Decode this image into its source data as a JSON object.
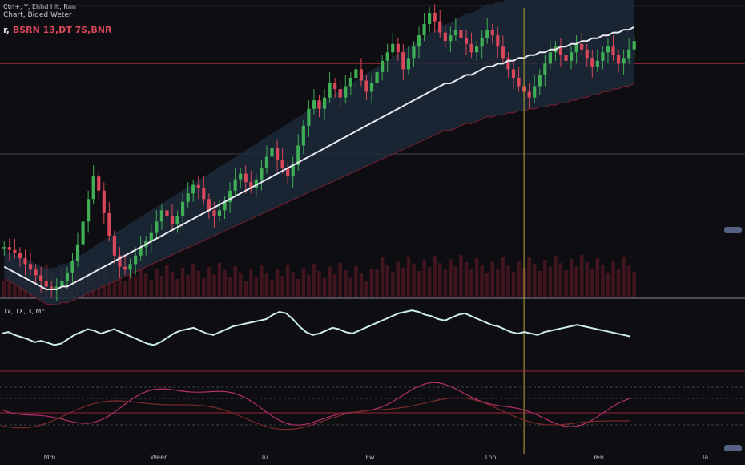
{
  "header": {
    "title": "Ctrl+, Y, Ehhd Hlt, Rnn",
    "symbol": "Chart, Biged Weter",
    "prefix": "r,",
    "ohlc": "BSRN 13,DT 7S,BNR"
  },
  "indicator_labels": {
    "oscillator": "Tx, 1X, 3, Mc"
  },
  "colors": {
    "background": "#0d0d12",
    "bull": "#3fae55",
    "bear": "#d9475a",
    "moving_average": "#e9e9ee",
    "band_fill": "#1c2a3a",
    "band_edge": "#7a1e2c",
    "volume": "#6b1d26",
    "oscillator_main": "#cdeee6",
    "oscillator_signal": "#b3306a",
    "oscillator_fast": "#7a2a2a",
    "reference_line_red": "#a8283a",
    "crosshair": "#b8a53a",
    "grid": "#4a4a56"
  },
  "chart_data": {
    "type": "candlestick",
    "title": "",
    "x_axis_labels": [
      "Mm",
      "Weer",
      "Tu",
      "Fw",
      "Tnn",
      "Yen",
      "Ta"
    ],
    "y_range": [
      0,
      100
    ],
    "grid": true,
    "price": {
      "start": 17,
      "closes": [
        17,
        16,
        15,
        13,
        11,
        9,
        7,
        5,
        3,
        2,
        3,
        5,
        8,
        12,
        18,
        26,
        34,
        42,
        37,
        29,
        21,
        14,
        10,
        9,
        11,
        14,
        17,
        19,
        22,
        26,
        30,
        28,
        25,
        28,
        33,
        36,
        39,
        38,
        34,
        30,
        28,
        30,
        33,
        37,
        41,
        43,
        40,
        38,
        41,
        45,
        49,
        52,
        48,
        45,
        42,
        46,
        53,
        60,
        66,
        69,
        66,
        70,
        75,
        73,
        70,
        74,
        77,
        80,
        76,
        72,
        75,
        79,
        83,
        86,
        89,
        86,
        80,
        84,
        88,
        92,
        96,
        100,
        97,
        93,
        90,
        92,
        94,
        91,
        89,
        86,
        88,
        91,
        94,
        92,
        88,
        84,
        80,
        77,
        74,
        72,
        70,
        74,
        78,
        82,
        86,
        88,
        85,
        83,
        86,
        89,
        87,
        84,
        81,
        83,
        86,
        88,
        85,
        82,
        84,
        87,
        90
      ],
      "horizontal_levels": [
        50,
        82
      ],
      "crosshair_index": 99
    },
    "moving_average": [
      10,
      9,
      8,
      7,
      6,
      5,
      4,
      3,
      2,
      2,
      2,
      3,
      3,
      4,
      5,
      6,
      7,
      8,
      9,
      10,
      11,
      12,
      13,
      14,
      15,
      16,
      17,
      18,
      19,
      20,
      21,
      22,
      23,
      24,
      25,
      26,
      27,
      28,
      29,
      30,
      31,
      32,
      33,
      34,
      35,
      36,
      37,
      38,
      39,
      40,
      41,
      42,
      43,
      44,
      45,
      46,
      47,
      48,
      49,
      50,
      51,
      52,
      53,
      54,
      55,
      56,
      57,
      58,
      59,
      60,
      61,
      62,
      63,
      64,
      65,
      66,
      67,
      68,
      69,
      70,
      71,
      72,
      73,
      74,
      75,
      75,
      76,
      77,
      78,
      78,
      79,
      80,
      81,
      81,
      82,
      82,
      83,
      83,
      84,
      84,
      85,
      85,
      86,
      86,
      87,
      87,
      88,
      88,
      89,
      89,
      90,
      90,
      91,
      91,
      92,
      92,
      93,
      93,
      94,
      94,
      95
    ],
    "oscillator": [
      60,
      62,
      58,
      55,
      52,
      48,
      50,
      47,
      44,
      46,
      52,
      58,
      62,
      66,
      64,
      60,
      63,
      66,
      62,
      58,
      54,
      50,
      46,
      44,
      48,
      54,
      60,
      64,
      66,
      68,
      64,
      60,
      58,
      62,
      66,
      70,
      72,
      74,
      76,
      78,
      80,
      86,
      90,
      88,
      80,
      70,
      62,
      58,
      60,
      64,
      68,
      66,
      62,
      60,
      64,
      68,
      72,
      76,
      80,
      84,
      88,
      90,
      92,
      90,
      86,
      84,
      80,
      78,
      82,
      86,
      88,
      84,
      80,
      76,
      72,
      70,
      66,
      62,
      60,
      62,
      60,
      58,
      62,
      64,
      66,
      68,
      70,
      72,
      70,
      68,
      66,
      64,
      62,
      60,
      58,
      56
    ]
  }
}
